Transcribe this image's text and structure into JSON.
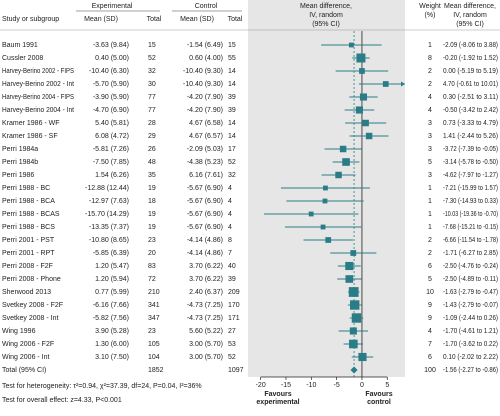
{
  "header": {
    "study": "Study or subgroup",
    "experimental": "Experimental",
    "control": "Control",
    "mean_sd": "Mean (SD)",
    "total": "Total",
    "plot_title": [
      "Mean difference,",
      "IV, random",
      "(95% CI)"
    ],
    "weight": [
      "Weight",
      "(%)"
    ],
    "md_title": [
      "Mean difference,",
      "IV, random",
      "(95% CI)"
    ]
  },
  "chart_data": {
    "type": "forest",
    "color": "#2a7d86",
    "background": "#e6e6e6",
    "xlim": [
      -22.5,
      8.5
    ],
    "xticks": [
      -20,
      -15,
      -10,
      -5,
      0,
      5
    ],
    "x_label_left": [
      "Favours",
      "experimental"
    ],
    "x_label_right": [
      "Favours",
      "control"
    ],
    "rows": [
      {
        "study": "Baum 1991",
        "exp_mean_sd": "-3.63 (9.84)",
        "exp_total": 15,
        "ctrl_mean_sd": "-1.54 (6.49)",
        "ctrl_total": 15,
        "weight": 1,
        "md": -2.09,
        "lo": -8.06,
        "hi": 3.88,
        "md_label": "-2.09 (-8.06 to 3.88)"
      },
      {
        "study": "Cussler 2008",
        "exp_mean_sd": "0.40 (5.00)",
        "exp_total": 52,
        "ctrl_mean_sd": "0.60 (4.00)",
        "ctrl_total": 55,
        "weight": 8,
        "md": -0.2,
        "lo": -1.92,
        "hi": 1.52,
        "md_label": "-0.20 (-1.92 to 1.52)"
      },
      {
        "study": "Harvey-Berino 2002 - FIPS",
        "exp_mean_sd": "-10.40 (6.30)",
        "exp_total": 32,
        "ctrl_mean_sd": "-10.40 (9.30)",
        "ctrl_total": 14,
        "weight": 2,
        "md": 0.0,
        "lo": -5.19,
        "hi": 5.19,
        "md_label": "0.00 (-5.19 to 5.19)"
      },
      {
        "study": "Harvey-Berino 2002 - Int",
        "exp_mean_sd": "-5.70 (5.90)",
        "exp_total": 30,
        "ctrl_mean_sd": "-10.40 (9.30)",
        "ctrl_total": 14,
        "weight": 2,
        "md": 4.7,
        "lo": -0.61,
        "hi": 10.01,
        "md_label": "4.70 (-0.61 to 10.01)"
      },
      {
        "study": "Harvey-Berino 2004 - FIPS",
        "exp_mean_sd": "-3.90 (5.90)",
        "exp_total": 77,
        "ctrl_mean_sd": "-4.20 (7.90)",
        "ctrl_total": 39,
        "weight": 4,
        "md": 0.3,
        "lo": -2.51,
        "hi": 3.11,
        "md_label": "0.30 (-2.51 to 3.11)"
      },
      {
        "study": "Harvey-Berino 2004 - Int",
        "exp_mean_sd": "-4.70 (6.90)",
        "exp_total": 77,
        "ctrl_mean_sd": "-4.20 (7.90)",
        "ctrl_total": 39,
        "weight": 4,
        "md": -0.5,
        "lo": -3.42,
        "hi": 2.42,
        "md_label": "-0.50 (-3.42 to 2.42)"
      },
      {
        "study": "Kramer 1986 - WF",
        "exp_mean_sd": "5.40 (5.81)",
        "exp_total": 28,
        "ctrl_mean_sd": "4.67 (6.58)",
        "ctrl_total": 14,
        "weight": 3,
        "md": 0.73,
        "lo": -3.33,
        "hi": 4.79,
        "md_label": "0.73 (-3.33 to 4.79)"
      },
      {
        "study": "Kramer 1986 - SF",
        "exp_mean_sd": "6.08 (4.72)",
        "exp_total": 29,
        "ctrl_mean_sd": "4.67 (6.57)",
        "ctrl_total": 14,
        "weight": 3,
        "md": 1.41,
        "lo": -2.44,
        "hi": 5.26,
        "md_label": "1.41 (-2.44 to 5.26)"
      },
      {
        "study": "Perri 1984a",
        "exp_mean_sd": "-5.81 (7.26)",
        "exp_total": 26,
        "ctrl_mean_sd": "-2.09 (5.03)",
        "ctrl_total": 17,
        "weight": 3,
        "md": -3.72,
        "lo": -7.39,
        "hi": -0.05,
        "md_label": "-3.72 (-7.39 to -0.05)"
      },
      {
        "study": "Perri 1984b",
        "exp_mean_sd": "-7.50 (7.85)",
        "exp_total": 48,
        "ctrl_mean_sd": "-4.38 (5.23)",
        "ctrl_total": 52,
        "weight": 5,
        "md": -3.14,
        "lo": -5.78,
        "hi": -0.5,
        "md_label": "-3.14 (-5.78 to -0.50)"
      },
      {
        "study": "Perri 1986",
        "exp_mean_sd": "1.54 (6.26)",
        "exp_total": 35,
        "ctrl_mean_sd": "6.16 (7.61)",
        "ctrl_total": 32,
        "weight": 3,
        "md": -4.62,
        "lo": -7.97,
        "hi": -1.27,
        "md_label": "-4.62 (-7.97 to -1.27)"
      },
      {
        "study": "Perri 1988 - BC",
        "exp_mean_sd": "-12.88 (12.44)",
        "exp_total": 19,
        "ctrl_mean_sd": "-5.67 (6.90)",
        "ctrl_total": 4,
        "weight": 1,
        "md": -7.21,
        "lo": -15.99,
        "hi": 1.57,
        "md_label": "-7.21 (-15.99 to 1.57)"
      },
      {
        "study": "Perri 1988 - BCA",
        "exp_mean_sd": "-12.97 (7.63)",
        "exp_total": 18,
        "ctrl_mean_sd": "-5.67 (6.90)",
        "ctrl_total": 4,
        "weight": 1,
        "md": -7.3,
        "lo": -14.93,
        "hi": 0.33,
        "md_label": "-7.30 (-14.93 to 0.33)"
      },
      {
        "study": "Perri 1988 - BCAS",
        "exp_mean_sd": "-15.70 (14.29)",
        "exp_total": 19,
        "ctrl_mean_sd": "-5.67 (6.90)",
        "ctrl_total": 4,
        "weight": 1,
        "md": -10.03,
        "lo": -19.36,
        "hi": -0.7,
        "md_label": "-10.03 (-19.36 to -0.70)"
      },
      {
        "study": "Perri 1988 - BCS",
        "exp_mean_sd": "-13.35 (7.37)",
        "exp_total": 19,
        "ctrl_mean_sd": "-5.67 (6.90)",
        "ctrl_total": 4,
        "weight": 1,
        "md": -7.68,
        "lo": -15.21,
        "hi": -0.15,
        "md_label": "-7.68 (-15.21 to -0.15)"
      },
      {
        "study": "Perri 2001 - PST",
        "exp_mean_sd": "-10.80 (8.65)",
        "exp_total": 23,
        "ctrl_mean_sd": "-4.14 (4.86)",
        "ctrl_total": 8,
        "weight": 2,
        "md": -6.66,
        "lo": -11.54,
        "hi": -1.78,
        "md_label": "-6.66 (-11.54 to -1.78)"
      },
      {
        "study": "Perri 2001 - RPT",
        "exp_mean_sd": "-5.85 (6.39)",
        "exp_total": 20,
        "ctrl_mean_sd": "-4.14 (4.86)",
        "ctrl_total": 7,
        "weight": 2,
        "md": -1.71,
        "lo": -6.27,
        "hi": 2.85,
        "md_label": "-1.71 (-6.27 to 2.85)"
      },
      {
        "study": "Perri 2008 - F2F",
        "exp_mean_sd": "1.20 (5.47)",
        "exp_total": 83,
        "ctrl_mean_sd": "3.70 (6.22)",
        "ctrl_total": 40,
        "weight": 6,
        "md": -2.5,
        "lo": -4.76,
        "hi": -0.24,
        "md_label": "-2.50 (-4.76 to -0.24)"
      },
      {
        "study": "Perri 2008 - Phone",
        "exp_mean_sd": "1.20 (5.94)",
        "exp_total": 72,
        "ctrl_mean_sd": "3.70 (6.22)",
        "ctrl_total": 39,
        "weight": 5,
        "md": -2.5,
        "lo": -4.89,
        "hi": -0.11,
        "md_label": "-2.50 (-4.89 to -0.11)"
      },
      {
        "study": "Sherwood 2013",
        "exp_mean_sd": "0.77 (5.99)",
        "exp_total": 210,
        "ctrl_mean_sd": "2.40 (6.37)",
        "ctrl_total": 209,
        "weight": 10,
        "md": -1.63,
        "lo": -2.79,
        "hi": -0.47,
        "md_label": "-1.63 (-2.79 to -0.47)"
      },
      {
        "study": "Svetkey 2008 - F2F",
        "exp_mean_sd": "-6.16 (7.66)",
        "exp_total": 341,
        "ctrl_mean_sd": "-4.73 (7.25)",
        "ctrl_total": 170,
        "weight": 9,
        "md": -1.43,
        "lo": -2.79,
        "hi": -0.07,
        "md_label": "-1.43 (-2.79 to -0.07)"
      },
      {
        "study": "Svetkey 2008 - Int",
        "exp_mean_sd": "-5.82 (7.56)",
        "exp_total": 347,
        "ctrl_mean_sd": "-4.73 (7.25)",
        "ctrl_total": 171,
        "weight": 9,
        "md": -1.09,
        "lo": -2.44,
        "hi": 0.26,
        "md_label": "-1.09 (-2.44 to 0.26)"
      },
      {
        "study": "Wing 1996",
        "exp_mean_sd": "3.90 (5.28)",
        "exp_total": 23,
        "ctrl_mean_sd": "5.60 (5.22)",
        "ctrl_total": 27,
        "weight": 4,
        "md": -1.7,
        "lo": -4.61,
        "hi": 1.21,
        "md_label": "-1.70 (-4.61 to 1.21)"
      },
      {
        "study": "Wing 2006 - F2F",
        "exp_mean_sd": "1.30 (6.00)",
        "exp_total": 105,
        "ctrl_mean_sd": "3.00 (5.70)",
        "ctrl_total": 53,
        "weight": 7,
        "md": -1.7,
        "lo": -3.62,
        "hi": 0.22,
        "md_label": "-1.70 (-3.62 to 0.22)"
      },
      {
        "study": "Wing 2006 - Int",
        "exp_mean_sd": "3.10 (7.50)",
        "exp_total": 104,
        "ctrl_mean_sd": "3.00 (5.70)",
        "ctrl_total": 52,
        "weight": 6,
        "md": 0.1,
        "lo": -2.02,
        "hi": 2.22,
        "md_label": "0.10 (-2.02 to 2.22)"
      }
    ],
    "total": {
      "study": "Total (95% CI)",
      "exp_total": 1852,
      "ctrl_total": 1097,
      "weight": 100,
      "md": -1.56,
      "lo": -2.27,
      "hi": -0.86,
      "md_label": "-1.56 (-2.27 to -0.86)"
    },
    "footer": [
      "Test for heterogeneity: τ²=0.94, χ²=37.39, df=24, P=0.04, I²=36%",
      "Test for overall effect: z=4.33, P<0.001"
    ]
  }
}
